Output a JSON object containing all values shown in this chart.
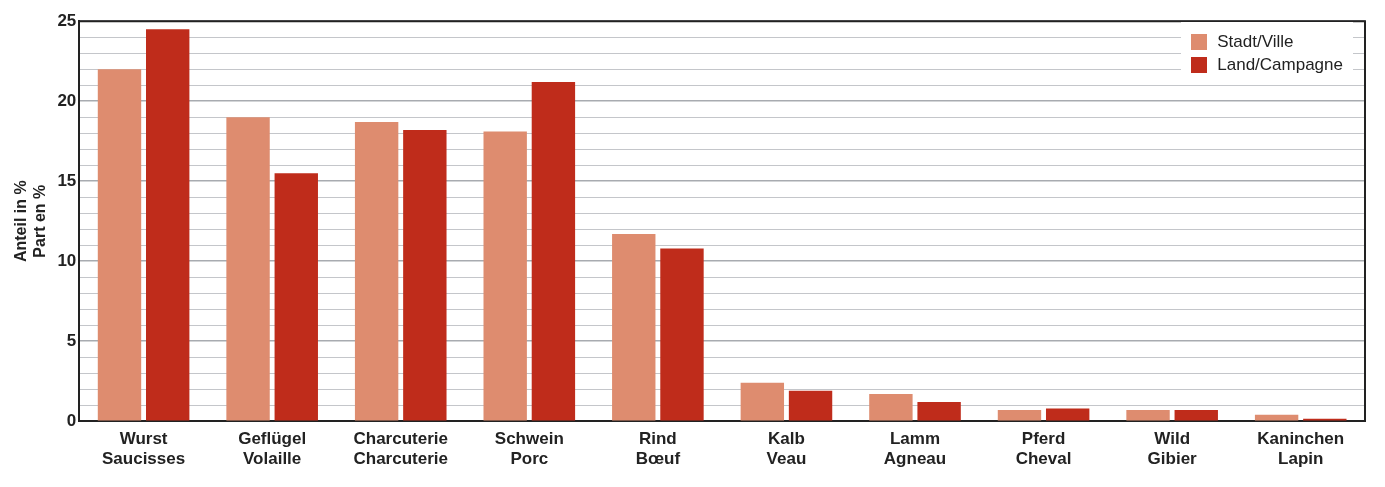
{
  "chart_data": {
    "type": "bar",
    "ylabel": "Anteil in %\nPart en %",
    "categories": [
      "Wurst\nSaucisses",
      "Geflügel\nVolaille",
      "Charcuterie\nCharcuterie",
      "Schwein\nPorc",
      "Rind\nBœuf",
      "Kalb\nVeau",
      "Lamm\nAgneau",
      "Pferd\nCheval",
      "Wild\nGibier",
      "Kaninchen\nLapin"
    ],
    "series": [
      {
        "name": "Stadt/Ville",
        "color": "#de8c6f",
        "values": [
          22,
          19,
          18.7,
          18.1,
          11.7,
          2.4,
          1.7,
          0.7,
          0.7,
          0.4
        ]
      },
      {
        "name": "Land/Campagne",
        "color": "#bf2c1b",
        "values": [
          24.5,
          15.5,
          18.2,
          21.2,
          10.8,
          1.9,
          1.2,
          0.8,
          0.7,
          0.15
        ]
      }
    ],
    "ylim": [
      0,
      25
    ],
    "yticks": [
      0,
      {
        "value": 1,
        "label": null
      },
      {
        "value": 2,
        "label": null
      },
      {
        "value": 3,
        "label": null
      },
      {
        "value": 4,
        "label": null
      },
      5,
      {
        "value": 6,
        "label": null
      },
      {
        "value": 7,
        "label": null
      },
      {
        "value": 8,
        "label": null
      },
      {
        "value": 9,
        "label": null
      },
      10,
      {
        "value": 11,
        "label": null
      },
      {
        "value": 12,
        "label": null
      },
      {
        "value": 13,
        "label": null
      },
      {
        "value": 14,
        "label": null
      },
      15,
      {
        "value": 16,
        "label": null
      },
      {
        "value": 17,
        "label": null
      },
      {
        "value": 18,
        "label": null
      },
      {
        "value": 19,
        "label": null
      },
      20,
      {
        "value": 21,
        "label": null
      },
      {
        "value": 22,
        "label": null
      },
      {
        "value": 23,
        "label": null
      },
      {
        "value": 24,
        "label": null
      },
      25
    ],
    "grid": "y",
    "legend": "top right"
  }
}
